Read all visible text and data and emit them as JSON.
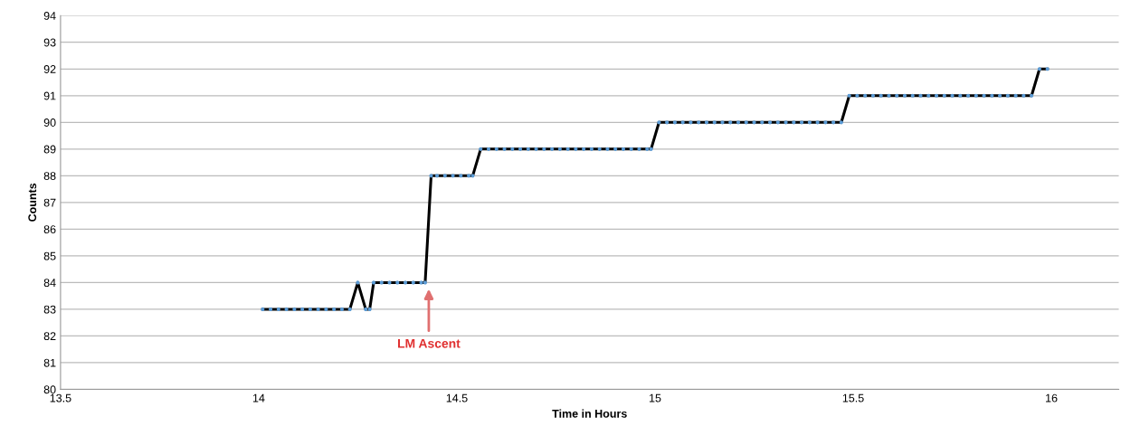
{
  "chart_data": {
    "type": "line",
    "xlabel": "Time in Hours",
    "ylabel": "Counts",
    "xlim": [
      13.5,
      16.17
    ],
    "xticks": [
      13.5,
      14,
      14.5,
      15,
      15.5,
      16
    ],
    "ylim": [
      80,
      94
    ],
    "yticks": [
      80,
      81,
      82,
      83,
      84,
      85,
      86,
      87,
      88,
      89,
      90,
      91,
      92,
      93,
      94
    ],
    "grid": "y",
    "legend": false,
    "annotations": [
      "LM Ascent"
    ],
    "series": [
      {
        "color": "#000000",
        "marker": "none",
        "line_style": "solid",
        "x": [
          14.01,
          14.03,
          14.05,
          14.07,
          14.09,
          14.11,
          14.13,
          14.15,
          14.17,
          14.19,
          14.21,
          14.23,
          14.25,
          14.27,
          14.28,
          14.29,
          14.31,
          14.33,
          14.35,
          14.37,
          14.39,
          14.41,
          14.42,
          14.435,
          14.45,
          14.47,
          14.49,
          14.51,
          14.53,
          14.54,
          14.56,
          14.58,
          14.6,
          14.62,
          14.64,
          14.66,
          14.68,
          14.7,
          14.72,
          14.74,
          14.76,
          14.78,
          14.8,
          14.82,
          14.84,
          14.86,
          14.88,
          14.9,
          14.92,
          14.94,
          14.96,
          14.98,
          14.99,
          15.01,
          15.03,
          15.05,
          15.07,
          15.09,
          15.11,
          15.13,
          15.15,
          15.17,
          15.19,
          15.21,
          15.23,
          15.25,
          15.27,
          15.29,
          15.31,
          15.33,
          15.35,
          15.37,
          15.39,
          15.41,
          15.43,
          15.45,
          15.47,
          15.49,
          15.51,
          15.53,
          15.55,
          15.57,
          15.59,
          15.61,
          15.63,
          15.65,
          15.67,
          15.69,
          15.71,
          15.73,
          15.75,
          15.77,
          15.79,
          15.81,
          15.83,
          15.85,
          15.87,
          15.89,
          15.91,
          15.93,
          15.95,
          15.97,
          15.99
        ],
        "values": [
          83,
          83,
          83,
          83,
          83,
          83,
          83,
          83,
          83,
          83,
          83,
          83,
          84,
          83,
          83,
          84,
          84,
          84,
          84,
          84,
          84,
          84,
          84,
          88,
          88,
          88,
          88,
          88,
          88,
          88,
          89,
          89,
          89,
          89,
          89,
          89,
          89,
          89,
          89,
          89,
          89,
          89,
          89,
          89,
          89,
          89,
          89,
          89,
          89,
          89,
          89,
          89,
          89,
          90,
          90,
          90,
          90,
          90,
          90,
          90,
          90,
          90,
          90,
          90,
          90,
          90,
          90,
          90,
          90,
          90,
          90,
          90,
          90,
          90,
          90,
          90,
          90,
          91,
          91,
          91,
          91,
          91,
          91,
          91,
          91,
          91,
          91,
          91,
          91,
          91,
          91,
          91,
          91,
          91,
          91,
          91,
          91,
          91,
          91,
          91,
          91,
          92,
          92
        ]
      },
      {
        "type": "scatter",
        "color": "#5b9bd5",
        "marker": "circle",
        "x": [
          14.01,
          14.03,
          14.05,
          14.07,
          14.09,
          14.11,
          14.13,
          14.15,
          14.17,
          14.19,
          14.21,
          14.23,
          14.25,
          14.27,
          14.28,
          14.29,
          14.31,
          14.33,
          14.35,
          14.37,
          14.39,
          14.41,
          14.42,
          14.435,
          14.45,
          14.47,
          14.49,
          14.51,
          14.53,
          14.54,
          14.56,
          14.58,
          14.6,
          14.62,
          14.64,
          14.66,
          14.68,
          14.7,
          14.72,
          14.74,
          14.76,
          14.78,
          14.8,
          14.82,
          14.84,
          14.86,
          14.88,
          14.9,
          14.92,
          14.94,
          14.96,
          14.98,
          14.99,
          15.01,
          15.03,
          15.05,
          15.07,
          15.09,
          15.11,
          15.13,
          15.15,
          15.17,
          15.19,
          15.21,
          15.23,
          15.25,
          15.27,
          15.29,
          15.31,
          15.33,
          15.35,
          15.37,
          15.39,
          15.41,
          15.43,
          15.45,
          15.47,
          15.49,
          15.51,
          15.53,
          15.55,
          15.57,
          15.59,
          15.61,
          15.63,
          15.65,
          15.67,
          15.69,
          15.71,
          15.73,
          15.75,
          15.77,
          15.79,
          15.81,
          15.83,
          15.85,
          15.87,
          15.89,
          15.91,
          15.93,
          15.95,
          15.97,
          15.99
        ],
        "values": [
          83,
          83,
          83,
          83,
          83,
          83,
          83,
          83,
          83,
          83,
          83,
          83,
          84,
          83,
          83,
          84,
          84,
          84,
          84,
          84,
          84,
          84,
          84,
          88,
          88,
          88,
          88,
          88,
          88,
          88,
          89,
          89,
          89,
          89,
          89,
          89,
          89,
          89,
          89,
          89,
          89,
          89,
          89,
          89,
          89,
          89,
          89,
          89,
          89,
          89,
          89,
          89,
          89,
          90,
          90,
          90,
          90,
          90,
          90,
          90,
          90,
          90,
          90,
          90,
          90,
          90,
          90,
          90,
          90,
          90,
          90,
          90,
          90,
          90,
          90,
          90,
          90,
          91,
          91,
          91,
          91,
          91,
          91,
          91,
          91,
          91,
          91,
          91,
          91,
          91,
          91,
          91,
          91,
          91,
          91,
          91,
          91,
          91,
          91,
          91,
          91,
          92,
          92
        ]
      }
    ]
  }
}
